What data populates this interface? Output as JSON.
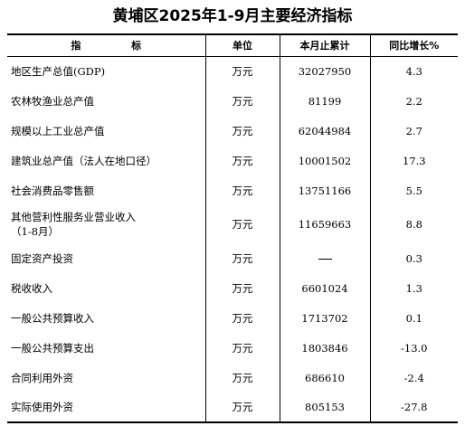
{
  "title": "黄埔区2025年1-9月主要经济指标",
  "header": {
    "name": "指 标",
    "unit": "单位",
    "value": "本月止累计",
    "growth": "同比增长%"
  },
  "rows": [
    {
      "name": "地区生产总值(GDP)",
      "name2": "",
      "unit": "万元",
      "value": "32027950",
      "growth": "4.3"
    },
    {
      "name": "农林牧渔业总产值",
      "name2": "",
      "unit": "万元",
      "value": "81199",
      "growth": "2.2"
    },
    {
      "name": "规模以上工业总产值",
      "name2": "",
      "unit": "万元",
      "value": "62044984",
      "growth": "2.7"
    },
    {
      "name": "建筑业总产值（法人在地口径）",
      "name2": "",
      "unit": "万元",
      "value": "10001502",
      "growth": "17.3"
    },
    {
      "name": "社会消费品零售额",
      "name2": "",
      "unit": "万元",
      "value": "13751166",
      "growth": "5.5"
    },
    {
      "name": "其他营利性服务业营业收入",
      "name2": "（1-8月）",
      "unit": "万元",
      "value": "11659663",
      "growth": "8.8"
    },
    {
      "name": "固定资产投资",
      "name2": "",
      "unit": "万元",
      "value": "—",
      "growth": "0.3"
    },
    {
      "name": "税收收入",
      "name2": "",
      "unit": "万元",
      "value": "6601024",
      "growth": "1.3"
    },
    {
      "name": "一般公共预算收入",
      "name2": "",
      "unit": "万元",
      "value": "1713702",
      "growth": "0.1"
    },
    {
      "name": "一般公共预算支出",
      "name2": "",
      "unit": "万元",
      "value": "1803846",
      "growth": "-13.0"
    },
    {
      "name": "合同利用外资",
      "name2": "",
      "unit": "万元",
      "value": "686610",
      "growth": "-2.4"
    },
    {
      "name": "实际使用外资",
      "name2": "",
      "unit": "万元",
      "value": "805153",
      "growth": "-27.8"
    }
  ]
}
